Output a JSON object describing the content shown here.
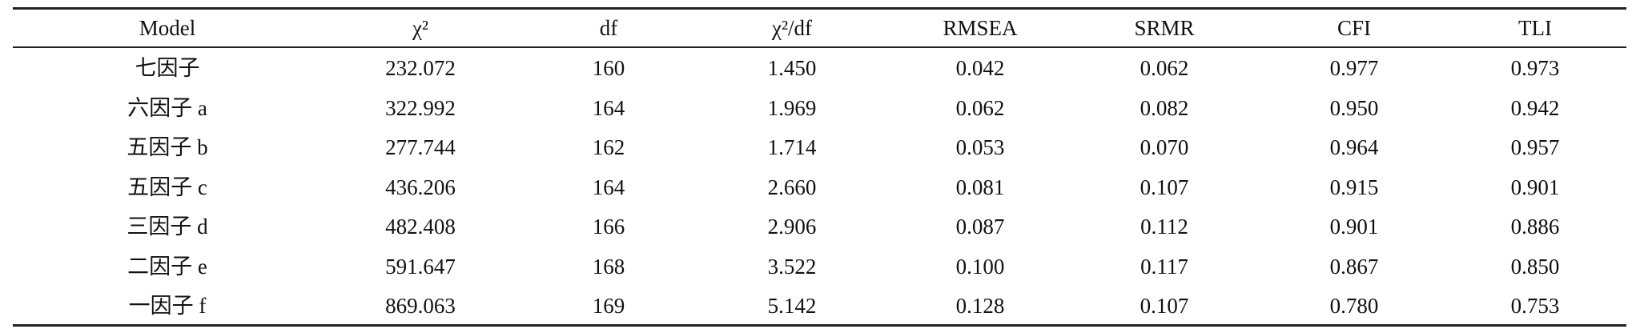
{
  "table": {
    "header": [
      "Model",
      "χ²",
      "df",
      "χ²/df",
      "RMSEA",
      "SRMR",
      "CFI",
      "TLI"
    ],
    "rows": [
      [
        "七因子",
        "232.072",
        "160",
        "1.450",
        "0.042",
        "0.062",
        "0.977",
        "0.973"
      ],
      [
        "六因子 a",
        "322.992",
        "164",
        "1.969",
        "0.062",
        "0.082",
        "0.950",
        "0.942"
      ],
      [
        "五因子 b",
        "277.744",
        "162",
        "1.714",
        "0.053",
        "0.070",
        "0.964",
        "0.957"
      ],
      [
        "五因子 c",
        "436.206",
        "164",
        "2.660",
        "0.081",
        "0.107",
        "0.915",
        "0.901"
      ],
      [
        "三因子 d",
        "482.408",
        "166",
        "2.906",
        "0.087",
        "0.112",
        "0.901",
        "0.886"
      ],
      [
        "二因子 e",
        "591.647",
        "168",
        "3.522",
        "0.100",
        "0.117",
        "0.867",
        "0.850"
      ],
      [
        "一因子 f",
        "869.063",
        "169",
        "5.142",
        "0.128",
        "0.107",
        "0.780",
        "0.753"
      ]
    ]
  }
}
